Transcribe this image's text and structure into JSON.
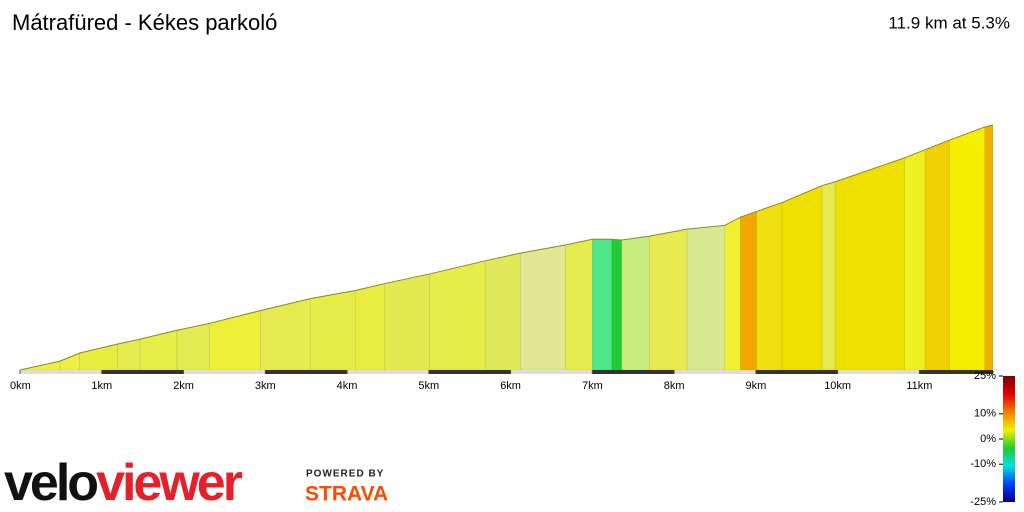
{
  "chart_data": {
    "type": "elevation_profile",
    "title": "Mátrafüred - Kékes parkoló",
    "subtitle": "11.9 km at 5.3%",
    "x": [
      0,
      0.49,
      0.73,
      1.19,
      1.47,
      1.92,
      2.32,
      2.94,
      3.55,
      4.1,
      4.46,
      5.01,
      5.69,
      6.12,
      6.67,
      7.0,
      7.24,
      7.36,
      7.7,
      8.16,
      8.62,
      8.81,
      9.01,
      9.32,
      9.81,
      9.97,
      10.82,
      11.07,
      11.37,
      11.8,
      11.9
    ],
    "values": [
      0,
      23,
      44,
      67,
      80,
      103,
      121,
      154,
      185,
      206,
      224,
      249,
      283,
      303,
      324,
      339,
      339,
      337,
      347,
      365,
      375,
      396,
      411,
      434,
      478,
      488,
      550,
      571,
      596,
      630,
      635
    ],
    "segment_colors": [
      "#f0f040",
      "#eef040",
      "#e8ee40",
      "#e4ec50",
      "#e8ee48",
      "#e0ec50",
      "#eef038",
      "#e4ea50",
      "#e6ec48",
      "#eaee40",
      "#e2ea50",
      "#e6ec48",
      "#e0ea58",
      "#dfe890",
      "#e6ec50",
      "#4de88a",
      "#22cc33",
      "#c8ec80",
      "#e8ea50",
      "#d8e890",
      "#f0f030",
      "#f0a800",
      "#f0e010",
      "#f0e000",
      "#e8e850",
      "#f0e000",
      "#f0f020",
      "#f0d000",
      "#f4ee00",
      "#f0b000"
    ],
    "xlim": [
      0,
      11.9
    ],
    "ylim": [
      0,
      635
    ],
    "xticks": [
      {
        "value": 0,
        "label": "0km"
      },
      {
        "value": 1,
        "label": "1km"
      },
      {
        "value": 2,
        "label": "2km"
      },
      {
        "value": 3,
        "label": "3km"
      },
      {
        "value": 4,
        "label": "4km"
      },
      {
        "value": 5,
        "label": "5km"
      },
      {
        "value": 6,
        "label": "6km"
      },
      {
        "value": 7,
        "label": "7km"
      },
      {
        "value": 8,
        "label": "8km"
      },
      {
        "value": 9,
        "label": "9km"
      },
      {
        "value": 10,
        "label": "10km"
      },
      {
        "value": 11,
        "label": "11km"
      }
    ],
    "colorscale": {
      "ticks": [
        {
          "value": 25,
          "label": "25%"
        },
        {
          "value": 10,
          "label": "10%"
        },
        {
          "value": 0,
          "label": "0%"
        },
        {
          "value": -10,
          "label": "-10%"
        },
        {
          "value": -25,
          "label": "-25%"
        }
      ],
      "lim": [
        -25,
        25
      ],
      "colors": [
        "#7a0000",
        "#e00000",
        "#f08000",
        "#f0f000",
        "#20cc30",
        "#00e0e0",
        "#0040ff",
        "#000080"
      ]
    }
  },
  "branding": {
    "logo_left": "velo",
    "logo_right": "viewer",
    "powered": "POWERED BY",
    "strava": "STRAVA"
  }
}
